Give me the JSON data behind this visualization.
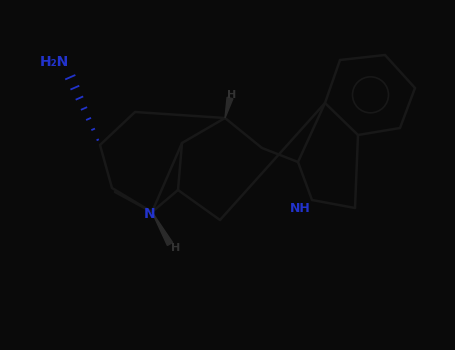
{
  "background_color": "#0a0a0a",
  "bond_color": "#1a1a1a",
  "heteroatom_color": "#2233cc",
  "stereo_color": "#2a2a2a",
  "line_width": 1.8,
  "bond_color_actual": "#111111",
  "atoms": {
    "NH2": {
      "text": "H₂N",
      "color": "#2233cc",
      "fontsize": 10
    },
    "N6": {
      "text": "N",
      "color": "#2233cc",
      "fontsize": 10
    },
    "NH": {
      "text": "NH",
      "color": "#2233cc",
      "fontsize": 10
    }
  }
}
